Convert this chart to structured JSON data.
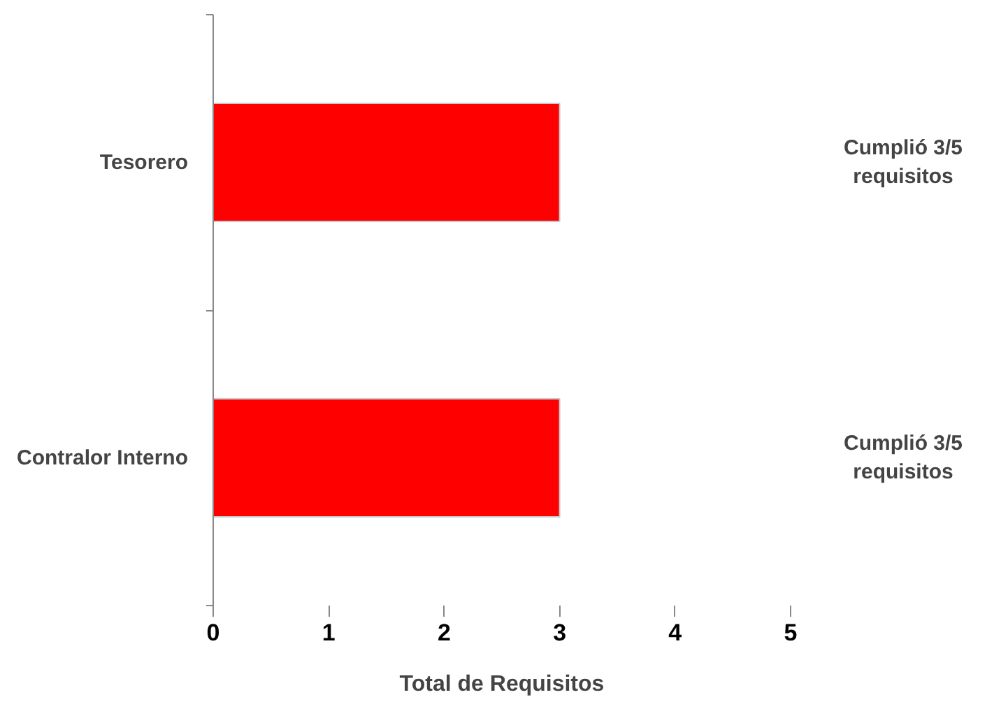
{
  "chart_data": {
    "type": "bar",
    "orientation": "horizontal",
    "categories": [
      "Tesorero",
      "Contralor Interno"
    ],
    "values": [
      3,
      3
    ],
    "color": "#ff0000",
    "xlim": [
      0,
      5
    ],
    "xticks": [
      0,
      1,
      2,
      3,
      4,
      5
    ],
    "xlabel": "Total de Requisitos",
    "grid": false,
    "annotations": [
      "Cumplió 3/5\nrequisitos",
      "Cumplió 3/5\nrequisitos"
    ]
  }
}
